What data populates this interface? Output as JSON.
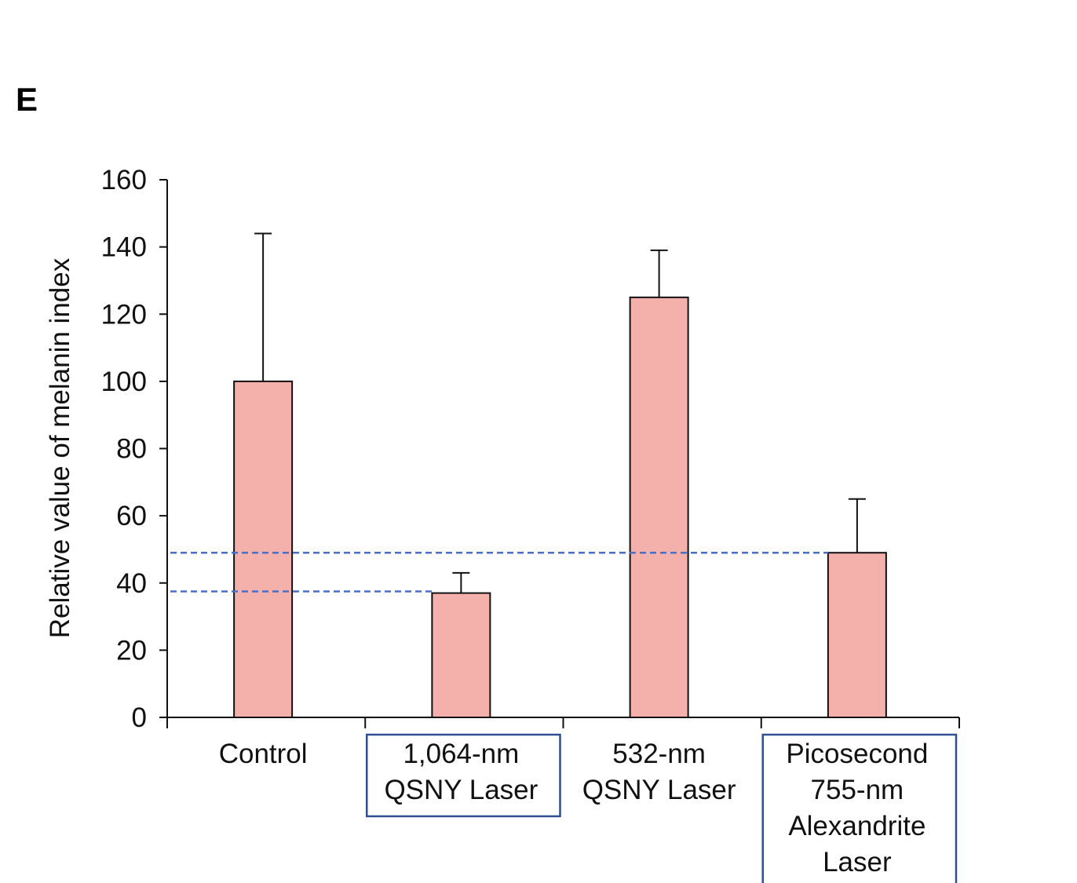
{
  "panel_label": "E",
  "chart_data": {
    "type": "bar",
    "title": "",
    "xlabel": "",
    "ylabel": "Relative value of melanin index",
    "ylim": [
      0,
      160
    ],
    "yticks": [
      0,
      20,
      40,
      60,
      80,
      100,
      120,
      140,
      160
    ],
    "yticks_labels": [
      "0",
      "20",
      "40",
      "60",
      "80",
      "100",
      "120",
      "140",
      "160"
    ],
    "grid": false,
    "categories": [
      [
        "Control"
      ],
      [
        "1,064-nm",
        "QSNY Laser"
      ],
      [
        "532-nm",
        "QSNY Laser"
      ],
      [
        "Picosecond",
        "755-nm",
        "Alexandrite",
        "Laser"
      ]
    ],
    "boxed_categories": [
      false,
      true,
      false,
      true
    ],
    "values": [
      100,
      37,
      125,
      49
    ],
    "error_upper": [
      144,
      43,
      139,
      65
    ],
    "reference_lines": [
      49,
      37.5
    ],
    "colors": {
      "bar_fill": "#f4b0aa",
      "bar_stroke": "#111111",
      "reference_line": "#4a6fc7",
      "box_stroke": "#2f4f8f"
    }
  }
}
